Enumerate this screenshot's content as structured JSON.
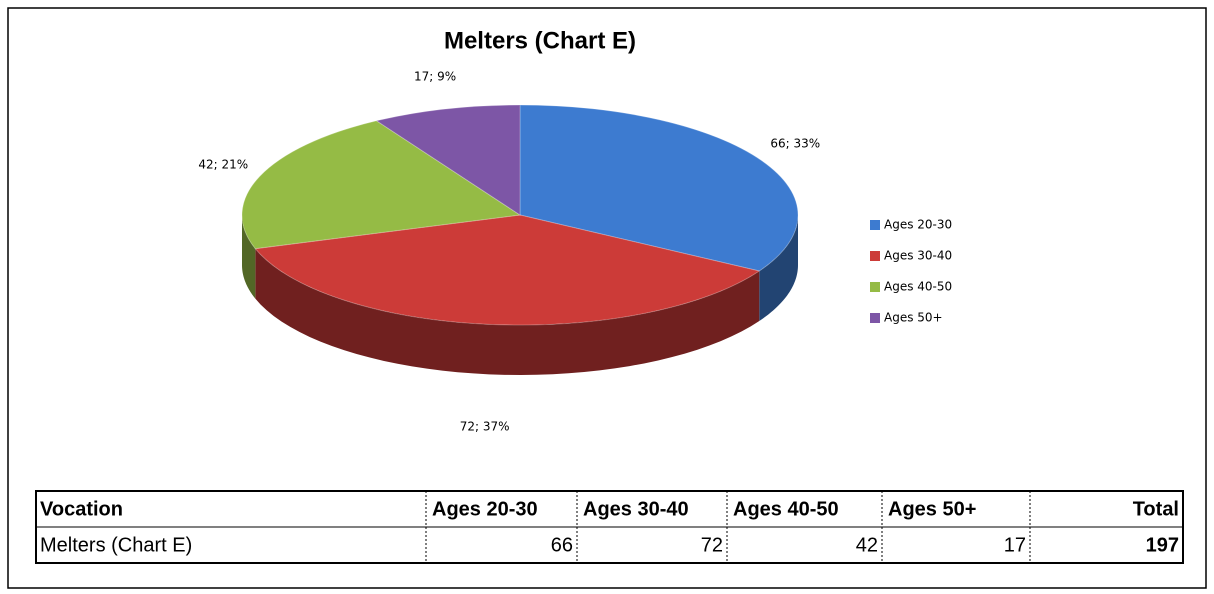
{
  "chart_data": {
    "type": "pie",
    "title": "Melters (Chart E)",
    "categories": [
      "Ages 20-30",
      "Ages 30-40",
      "Ages 40-50",
      "Ages 50+"
    ],
    "values": [
      66,
      72,
      42,
      17
    ],
    "value_labels": [
      "66; 33%",
      "72; 37%",
      "42; 21%",
      "17; 9%"
    ],
    "colors": [
      "#3d7bd0",
      "#cc3b38",
      "#95bb45",
      "#7d56a6"
    ],
    "legend": "right"
  },
  "table": {
    "header": [
      "Vocation",
      "Ages 20-30",
      "Ages 30-40",
      "Ages 40-50",
      "Ages 50+",
      "Total"
    ],
    "rows": [
      [
        "Melters (Chart E)",
        66,
        72,
        42,
        17,
        197
      ]
    ]
  }
}
